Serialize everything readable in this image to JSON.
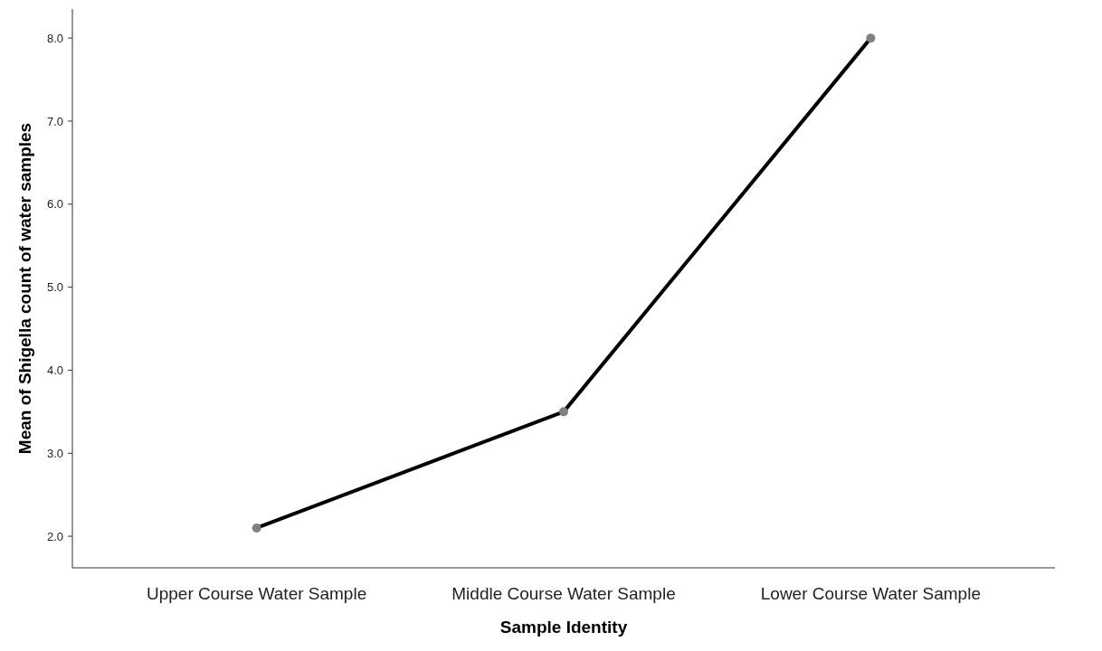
{
  "chart_data": {
    "type": "line",
    "xlabel": "Sample Identity",
    "ylabel": "Mean of Shigella count of water samples",
    "categories": [
      "Upper Course Water Sample",
      "Middle Course Water Sample",
      "Lower Course Water Sample"
    ],
    "series": [
      {
        "color": "#000000",
        "values": [
          2.1,
          3.5,
          8.0
        ]
      }
    ],
    "ylim": [
      1.62,
      8.35
    ],
    "yticks": [
      {
        "value": 2,
        "label": "2.0"
      },
      {
        "value": 3,
        "label": "3.0"
      },
      {
        "value": 4,
        "label": "4.0"
      },
      {
        "value": 5,
        "label": "5.0"
      },
      {
        "value": 6,
        "label": "6.0"
      },
      {
        "value": 7,
        "label": "7.0"
      },
      {
        "value": 8,
        "label": "8.0"
      }
    ],
    "marker": "circle",
    "line_style": "solid"
  }
}
